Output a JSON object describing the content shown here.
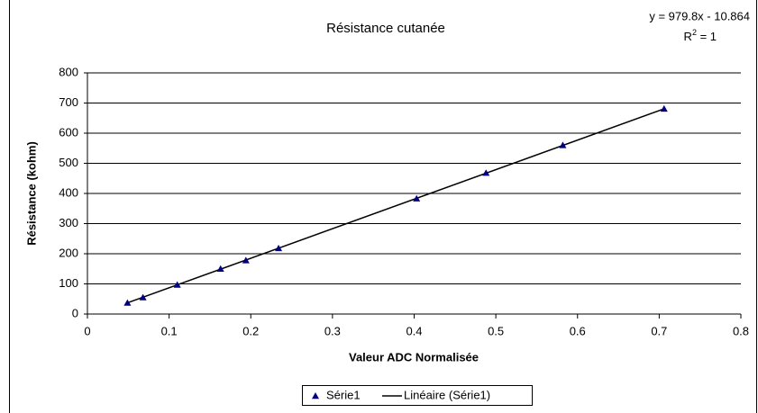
{
  "chart_data": {
    "type": "scatter",
    "title": "Résistance cutanée",
    "x_label": "Valeur ADC Normalisée",
    "y_label": "Résistance (kohm)",
    "series": [
      {
        "name": "Série1",
        "color": "#000080",
        "x": [
          0.049,
          0.068,
          0.11,
          0.163,
          0.194,
          0.234,
          0.403,
          0.488,
          0.582,
          0.706
        ],
        "values": [
          37,
          55,
          97,
          150,
          178,
          218,
          383,
          468,
          560,
          681
        ]
      }
    ],
    "trendline": {
      "name": "Linéaire (Série1)",
      "color": "#000000",
      "slope": 979.8,
      "intercept": -10.864,
      "equation": "y = 979.8x - 10.864",
      "r2_base": "R",
      "r2_sup": "2",
      "r2_rest": " = 1"
    },
    "xlim": [
      0,
      0.8
    ],
    "xticks": [
      0,
      0.1,
      0.2,
      0.3,
      0.4,
      0.5,
      0.6,
      0.7,
      0.8
    ],
    "ylim": [
      0,
      800
    ],
    "yticks": [
      0,
      100,
      200,
      300,
      400,
      500,
      600,
      700,
      800
    ],
    "grid": true,
    "legend": "bottom"
  }
}
